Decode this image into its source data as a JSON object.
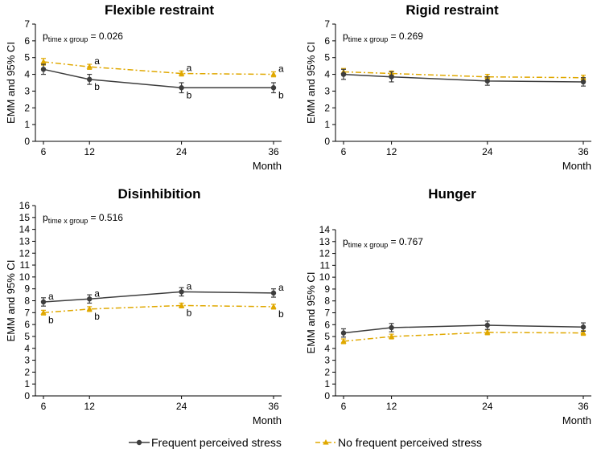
{
  "colors": {
    "frequent": "#3d3d3d",
    "no_frequent": "#e0a800"
  },
  "legend": {
    "items": [
      {
        "label": "Frequent perceived stress",
        "color": "#3d3d3d",
        "marker": "circle",
        "style": "solid"
      },
      {
        "label": "No frequent perceived stress",
        "color": "#e0a800",
        "marker": "triangle",
        "style": "dashdot"
      }
    ]
  },
  "chart_data": [
    {
      "type": "line",
      "title": "Flexible restraint",
      "xlabel": "Month",
      "ylabel": "EMM and 95% CI",
      "x": [
        6,
        12,
        24,
        36
      ],
      "xlim": [
        6,
        36
      ],
      "ylim": [
        0,
        7
      ],
      "yticks": [
        0,
        1,
        2,
        3,
        4,
        5,
        6,
        7
      ],
      "p_text": {
        "p": "p",
        "sub": "time x group",
        "value": " = 0.026"
      },
      "series": [
        {
          "name": "Frequent perceived stress",
          "values": [
            4.3,
            3.7,
            3.2,
            3.2
          ],
          "err": [
            0.3,
            0.3,
            0.3,
            0.3
          ],
          "labels": [
            "",
            "b",
            "b",
            "b"
          ]
        },
        {
          "name": "No frequent perceived stress",
          "values": [
            4.75,
            4.45,
            4.05,
            4.0
          ],
          "err": [
            0.2,
            0.15,
            0.15,
            0.15
          ],
          "labels": [
            "",
            "a",
            "a",
            "a"
          ]
        }
      ]
    },
    {
      "type": "line",
      "title": "Rigid restraint",
      "xlabel": "Month",
      "ylabel": "EMM and 95% CI",
      "x": [
        6,
        12,
        24,
        36
      ],
      "xlim": [
        6,
        36
      ],
      "ylim": [
        0,
        7
      ],
      "yticks": [
        0,
        1,
        2,
        3,
        4,
        5,
        6,
        7
      ],
      "p_text": {
        "p": "p",
        "sub": "time x group",
        "value": " = 0.269"
      },
      "series": [
        {
          "name": "Frequent perceived stress",
          "values": [
            4.0,
            3.85,
            3.6,
            3.55
          ],
          "err": [
            0.3,
            0.3,
            0.25,
            0.25
          ],
          "labels": [
            "",
            "",
            "",
            ""
          ]
        },
        {
          "name": "No frequent perceived stress",
          "values": [
            4.15,
            4.05,
            3.85,
            3.8
          ],
          "err": [
            0.2,
            0.15,
            0.15,
            0.15
          ],
          "labels": [
            "",
            "",
            "",
            ""
          ]
        }
      ]
    },
    {
      "type": "line",
      "title": "Disinhibition",
      "xlabel": "Month",
      "ylabel": "EMM and 95% CI",
      "x": [
        6,
        12,
        24,
        36
      ],
      "xlim": [
        6,
        36
      ],
      "ylim": [
        0,
        16
      ],
      "yticks": [
        0,
        1,
        2,
        3,
        4,
        5,
        6,
        7,
        8,
        9,
        10,
        11,
        12,
        13,
        14,
        15,
        16
      ],
      "p_text": {
        "p": "p",
        "sub": "time x group",
        "value": " = 0.516"
      },
      "series": [
        {
          "name": "Frequent perceived stress",
          "values": [
            7.9,
            8.15,
            8.75,
            8.65
          ],
          "err": [
            0.35,
            0.35,
            0.35,
            0.35
          ],
          "labels": [
            "a",
            "a",
            "a",
            "a"
          ]
        },
        {
          "name": "No frequent perceived stress",
          "values": [
            7.0,
            7.3,
            7.6,
            7.5
          ],
          "err": [
            0.2,
            0.2,
            0.2,
            0.2
          ],
          "labels": [
            "b",
            "b",
            "b",
            "b"
          ]
        }
      ]
    },
    {
      "type": "line",
      "title": "Hunger",
      "xlabel": "Month",
      "ylabel": "EMM and 95% CI",
      "x": [
        6,
        12,
        24,
        36
      ],
      "xlim": [
        6,
        36
      ],
      "ylim": [
        0,
        14
      ],
      "yticks": [
        0,
        1,
        2,
        3,
        4,
        5,
        6,
        7,
        8,
        9,
        10,
        11,
        12,
        13,
        14
      ],
      "p_text": {
        "p": "p",
        "sub": "time x group",
        "value": " = 0.767"
      },
      "series": [
        {
          "name": "Frequent perceived stress",
          "values": [
            5.3,
            5.75,
            5.95,
            5.8
          ],
          "err": [
            0.35,
            0.35,
            0.35,
            0.35
          ],
          "labels": [
            "",
            "",
            "",
            ""
          ]
        },
        {
          "name": "No frequent perceived stress",
          "values": [
            4.6,
            5.0,
            5.35,
            5.3
          ],
          "err": [
            0.2,
            0.2,
            0.2,
            0.2
          ],
          "labels": [
            "",
            "",
            "",
            ""
          ]
        }
      ]
    }
  ]
}
